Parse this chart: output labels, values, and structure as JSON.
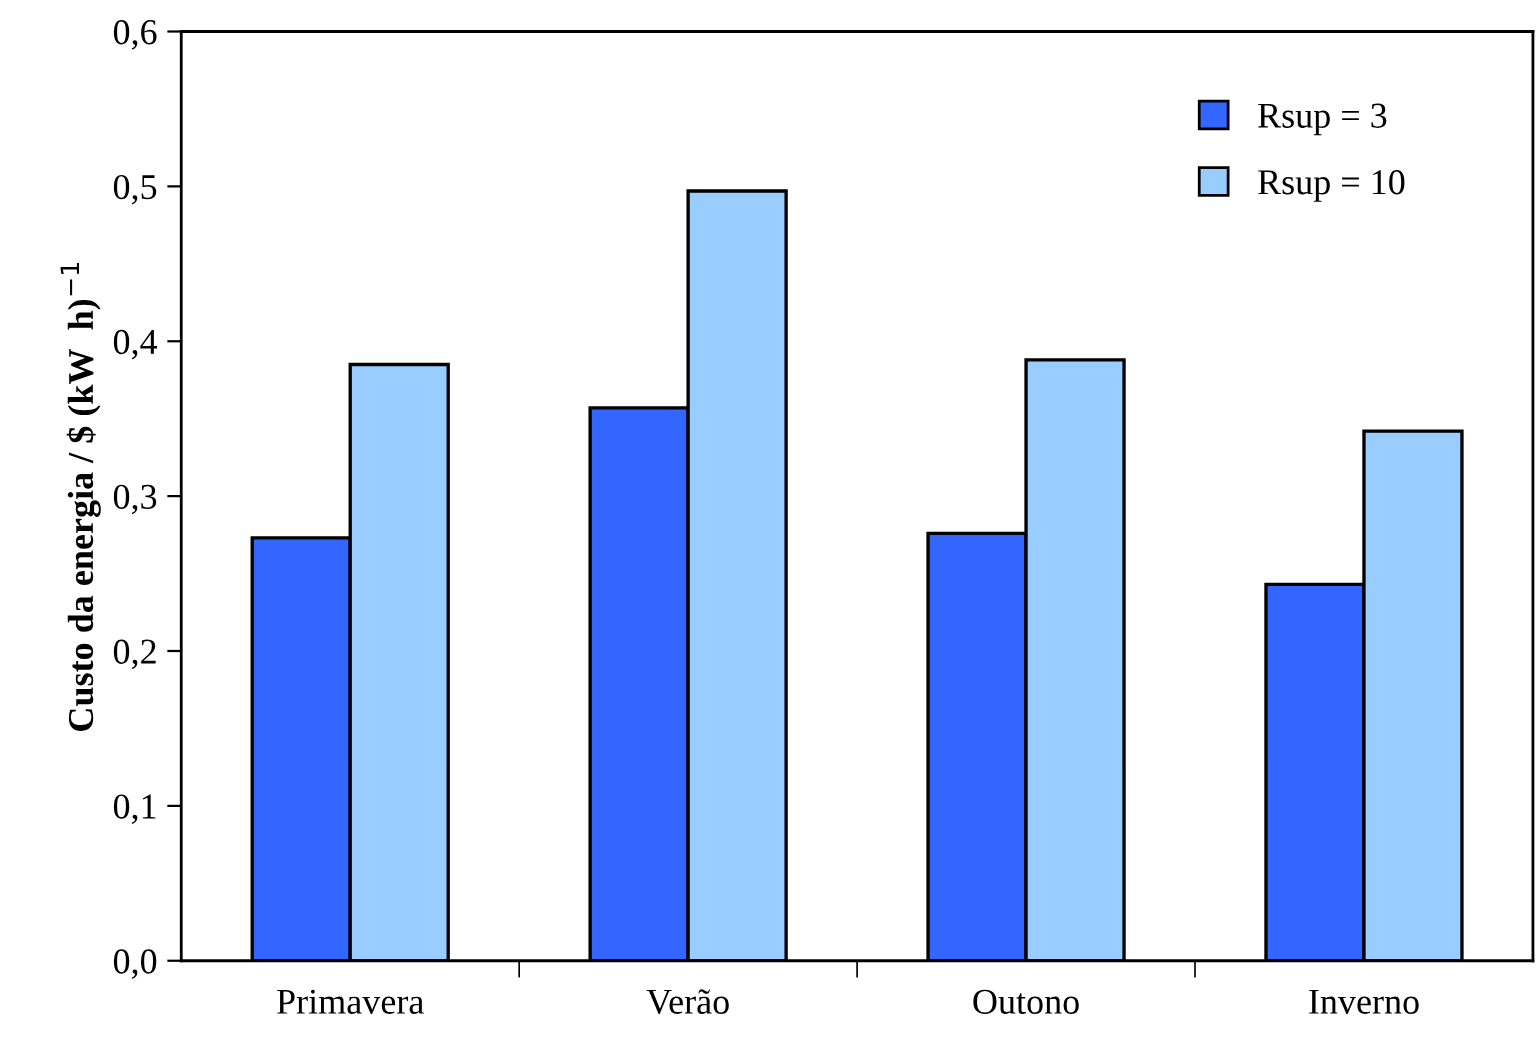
{
  "chart_data": {
    "type": "bar",
    "ylabel": "Custo da energia / $ (kW  h)$^{−1}$",
    "categories": [
      "Primavera",
      "Verão",
      "Outono",
      "Inverno"
    ],
    "series": [
      {
        "name": "Rsup = 3",
        "color": "#3366ff",
        "values": [
          0.273,
          0.357,
          0.276,
          0.243
        ]
      },
      {
        "name": "Rsup = 10",
        "color": "#99ccff",
        "values": [
          0.385,
          0.497,
          0.388,
          0.342
        ]
      }
    ],
    "ylim": [
      0,
      0.6
    ],
    "yticks": [
      {
        "value": 0,
        "label": "0,0"
      },
      {
        "value": 0.1,
        "label": "0,1"
      },
      {
        "value": 0.2,
        "label": "0,2"
      },
      {
        "value": 0.3,
        "label": "0,3"
      },
      {
        "value": 0.4,
        "label": "0,4"
      },
      {
        "value": 0.5,
        "label": "0,5"
      },
      {
        "value": 0.6,
        "label": "0,6"
      }
    ],
    "grid": false,
    "legend": "top right"
  }
}
